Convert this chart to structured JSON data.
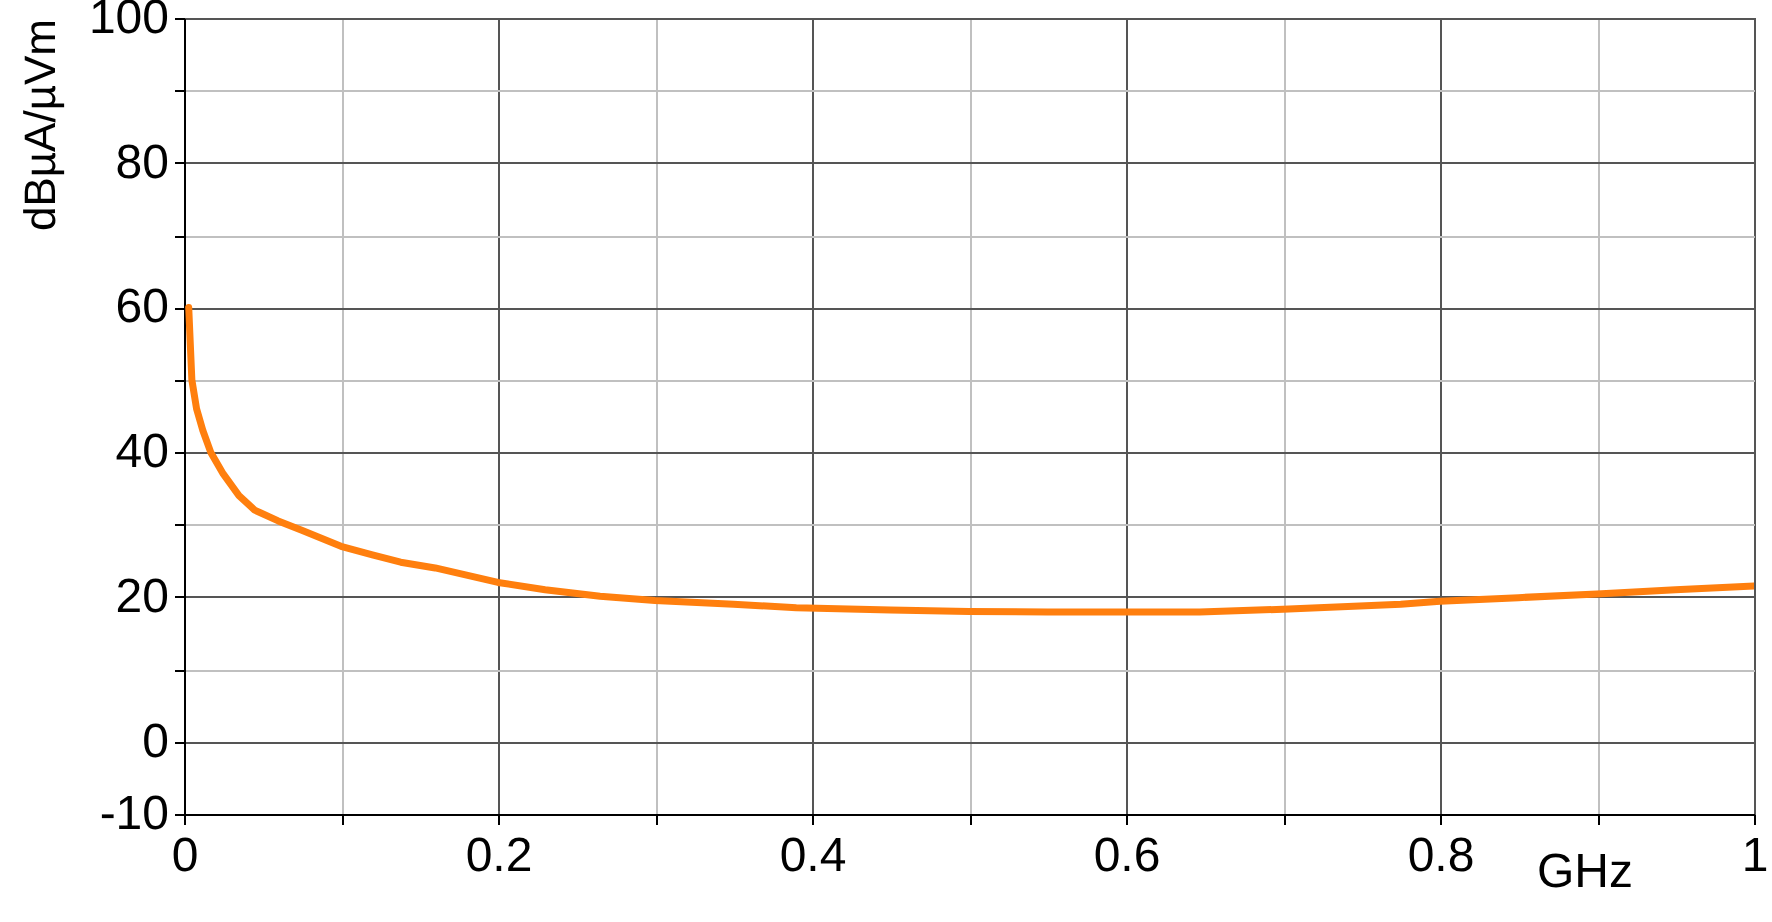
{
  "chart_data": {
    "type": "line",
    "xlabel": "GHz",
    "ylabel": "dBµA/µVm",
    "x": [
      0.003,
      0.005,
      0.008,
      0.012,
      0.017,
      0.025,
      0.035,
      0.045,
      0.06,
      0.075,
      0.1,
      0.12,
      0.138,
      0.16,
      0.2,
      0.23,
      0.265,
      0.3,
      0.35,
      0.39,
      0.45,
      0.5,
      0.55,
      0.6,
      0.647,
      0.7,
      0.775,
      0.8,
      0.85,
      0.9,
      0.95,
      1.0
    ],
    "series": [
      {
        "color": "#ff7f0e",
        "values": [
          60,
          50,
          46,
          43,
          40,
          37,
          34,
          32,
          30.5,
          29.2,
          27,
          25.8,
          24.8,
          24,
          22,
          21,
          20.1,
          19.5,
          19,
          18.5,
          18.2,
          18,
          17.9,
          17.9,
          17.9,
          18.3,
          19,
          19.4,
          19.9,
          20.4,
          21,
          21.5
        ]
      }
    ],
    "xlim": [
      0,
      1
    ],
    "xticks": [
      0,
      {
        "value": 0.1,
        "label": null
      },
      0.2,
      {
        "value": 0.3,
        "label": null
      },
      0.4,
      {
        "value": 0.5,
        "label": null
      },
      0.6,
      {
        "value": 0.7,
        "label": null
      },
      0.8,
      {
        "value": 0.9,
        "label": null
      },
      1
    ],
    "ylim": [
      -10,
      100
    ],
    "yticks": [
      -10,
      0,
      {
        "value": 10,
        "label": null
      },
      20,
      {
        "value": 30,
        "label": null
      },
      40,
      {
        "value": 50,
        "label": null
      },
      60,
      {
        "value": 70,
        "label": null
      },
      80,
      {
        "value": 90,
        "label": null
      },
      100
    ],
    "grid": true,
    "line_style": "solid",
    "marker": "none"
  }
}
